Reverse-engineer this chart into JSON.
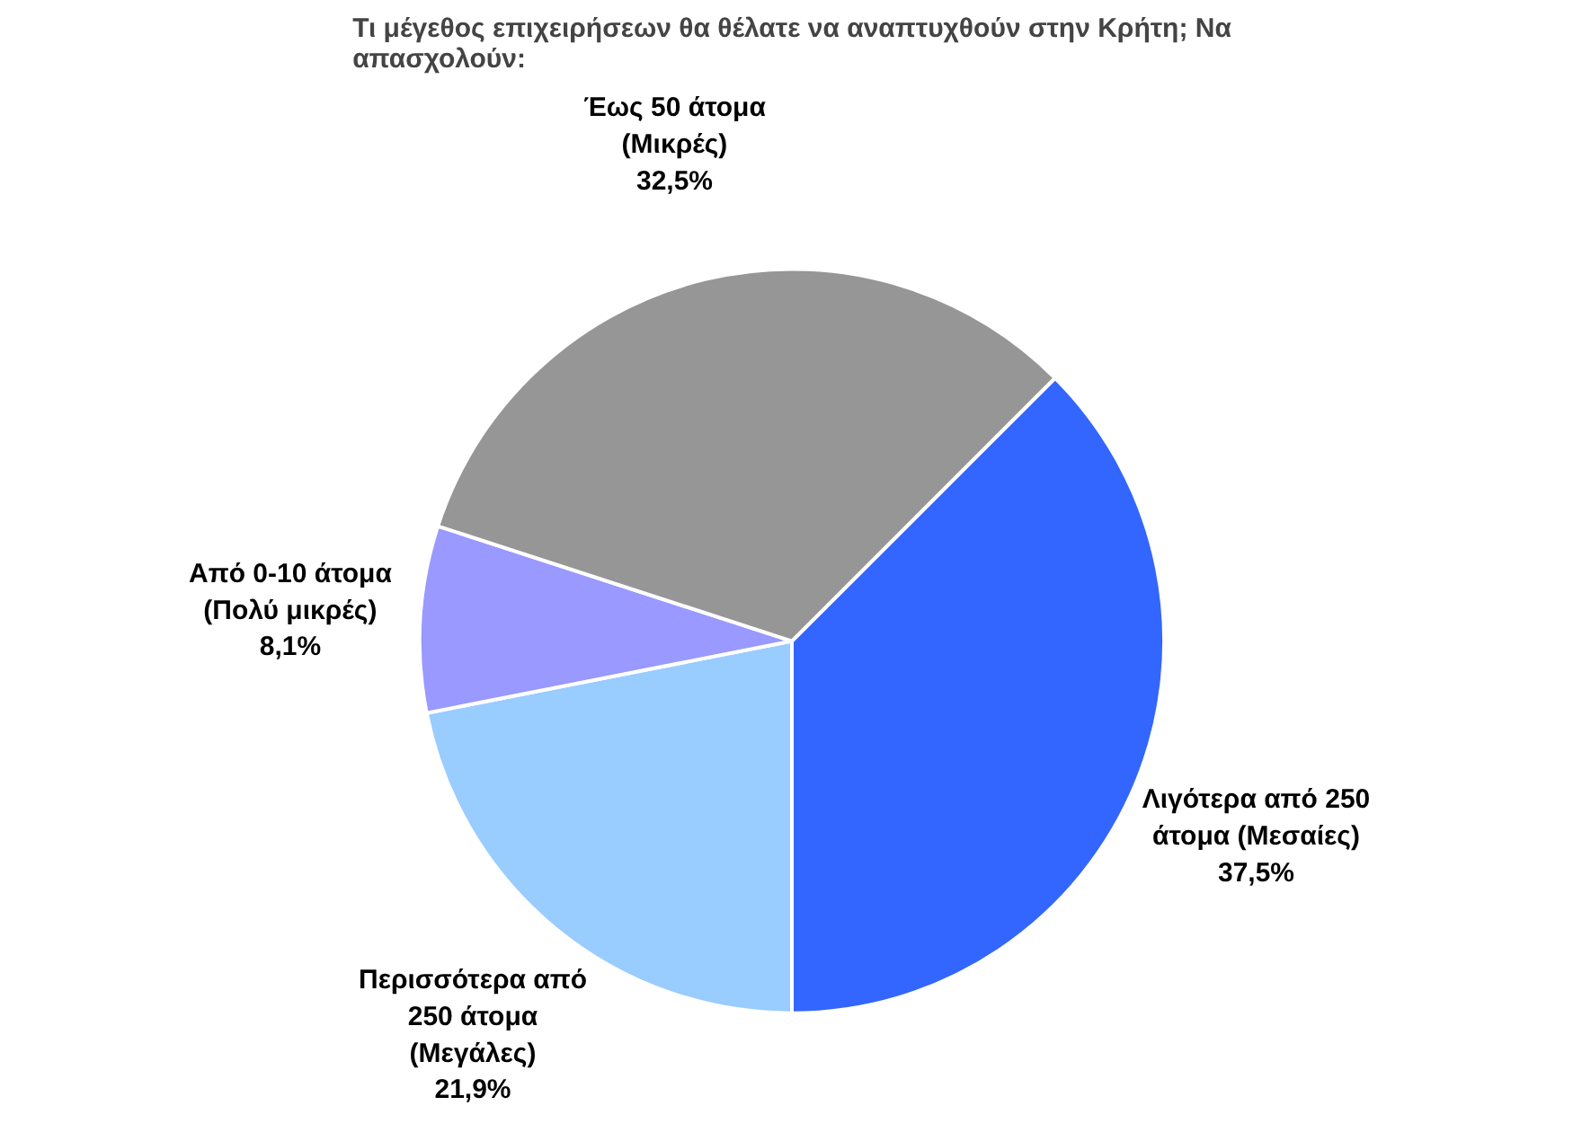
{
  "chart_data": {
    "type": "pie",
    "title": "Τι μέγεθος επιχειρήσεων θα θέλατε να αναπτυχθούν στην Κρήτη; Να απασχολούν:",
    "categories": [
      "Λιγότερα από 250 άτομα (Μεσαίες)",
      "Περισσότερα από 250 άτομα (Μεγάλες)",
      "Από 0-10 άτομα (Πολύ μικρές)",
      "Έως 50 άτομα (Μικρές)"
    ],
    "values": [
      37.5,
      21.9,
      8.1,
      32.5
    ],
    "colors": [
      "#3366ff",
      "#99ccff",
      "#9999ff",
      "#969696"
    ],
    "value_labels": [
      "37,5%",
      "21,9%",
      "8,1%",
      "32,5%"
    ]
  }
}
